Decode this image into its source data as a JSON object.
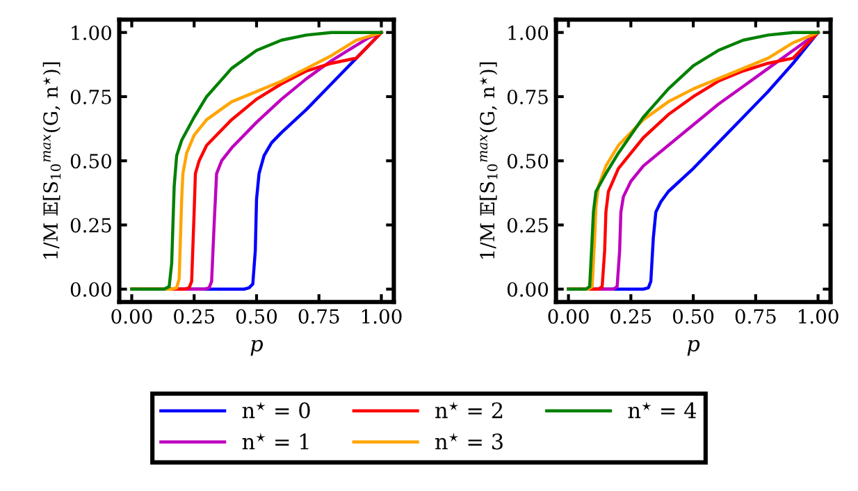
{
  "chart_data": [
    {
      "type": "line",
      "xlabel": "p",
      "ylabel": "1/M 𝔼[S$_{10}$$^{max}$(G, n$^{⋆}$)]",
      "xlim": [
        -0.05,
        1.05
      ],
      "ylim": [
        -0.05,
        1.05
      ],
      "xticks": [
        {
          "value": 0,
          "label": "0.00"
        },
        {
          "value": 0.25,
          "label": "0.25"
        },
        {
          "value": 0.5,
          "label": "0.50"
        },
        {
          "value": 0.75,
          "label": "0.75"
        },
        {
          "value": 1,
          "label": "1.00"
        }
      ],
      "yticks": [
        {
          "value": 0,
          "label": "0.00"
        },
        {
          "value": 0.25,
          "label": "0.25"
        },
        {
          "value": 0.5,
          "label": "0.50"
        },
        {
          "value": 0.75,
          "label": "0.75"
        },
        {
          "value": 1,
          "label": "1.00"
        }
      ],
      "grid": false,
      "legend": "bottom",
      "marker": "none",
      "line_style": "solid",
      "series": [
        {
          "name": "n$^{⋆}$ = 0",
          "color": "#0000ff",
          "x": [
            0,
            0.45,
            0.47,
            0.485,
            0.495,
            0.5,
            0.51,
            0.53,
            0.56,
            0.6,
            0.7,
            0.8,
            0.9,
            1
          ],
          "values": [
            0,
            0,
            0.005,
            0.02,
            0.15,
            0.35,
            0.45,
            0.52,
            0.57,
            0.61,
            0.7,
            0.8,
            0.9,
            1
          ]
        },
        {
          "name": "n$^{⋆}$ = 1",
          "color": "#bf00bf",
          "x": [
            0,
            0.29,
            0.31,
            0.32,
            0.33,
            0.34,
            0.36,
            0.4,
            0.5,
            0.6,
            0.7,
            0.8,
            0.9,
            0.95,
            1
          ],
          "values": [
            0,
            0,
            0.005,
            0.03,
            0.25,
            0.45,
            0.5,
            0.55,
            0.65,
            0.74,
            0.82,
            0.89,
            0.95,
            0.98,
            1
          ]
        },
        {
          "name": "n$^{⋆}$ = 2",
          "color": "#ff0000",
          "x": [
            0,
            0.21,
            0.23,
            0.24,
            0.25,
            0.255,
            0.27,
            0.3,
            0.4,
            0.5,
            0.6,
            0.7,
            0.8,
            0.9,
            0.95,
            1
          ],
          "values": [
            0,
            0,
            0.005,
            0.03,
            0.3,
            0.45,
            0.5,
            0.56,
            0.66,
            0.74,
            0.8,
            0.85,
            0.88,
            0.9,
            0.95,
            1
          ]
        },
        {
          "name": "n$^{⋆}$ = 3",
          "color": "#ffa500",
          "x": [
            0,
            0.16,
            0.18,
            0.19,
            0.2,
            0.205,
            0.22,
            0.25,
            0.3,
            0.4,
            0.5,
            0.6,
            0.7,
            0.8,
            0.9,
            1
          ],
          "values": [
            0,
            0,
            0.005,
            0.04,
            0.35,
            0.45,
            0.53,
            0.6,
            0.66,
            0.73,
            0.77,
            0.81,
            0.86,
            0.91,
            0.97,
            1
          ]
        },
        {
          "name": "n$^{⋆}$ = 4",
          "color": "#008000",
          "x": [
            0,
            0.13,
            0.15,
            0.16,
            0.17,
            0.18,
            0.2,
            0.25,
            0.3,
            0.4,
            0.5,
            0.6,
            0.7,
            0.8,
            1
          ],
          "values": [
            0,
            0,
            0.01,
            0.1,
            0.4,
            0.52,
            0.58,
            0.67,
            0.75,
            0.86,
            0.93,
            0.97,
            0.99,
            1,
            1
          ]
        }
      ]
    },
    {
      "type": "line",
      "xlabel": "p",
      "ylabel": "1/M 𝔼[S$_{10}$$^{max}$(G, n$^{⋆}$)]",
      "xlim": [
        -0.05,
        1.05
      ],
      "ylim": [
        -0.05,
        1.05
      ],
      "xticks": [
        {
          "value": 0,
          "label": "0.00"
        },
        {
          "value": 0.25,
          "label": "0.25"
        },
        {
          "value": 0.5,
          "label": "0.50"
        },
        {
          "value": 0.75,
          "label": "0.75"
        },
        {
          "value": 1,
          "label": "1.00"
        }
      ],
      "yticks": [
        {
          "value": 0,
          "label": "0.00"
        },
        {
          "value": 0.25,
          "label": "0.25"
        },
        {
          "value": 0.5,
          "label": "0.50"
        },
        {
          "value": 0.75,
          "label": "0.75"
        },
        {
          "value": 1,
          "label": "1.00"
        }
      ],
      "grid": false,
      "legend": "bottom",
      "marker": "none",
      "line_style": "solid",
      "series": [
        {
          "name": "n$^{⋆}$ = 0",
          "color": "#0000ff",
          "x": [
            0,
            0.3,
            0.32,
            0.33,
            0.34,
            0.35,
            0.37,
            0.4,
            0.5,
            0.6,
            0.7,
            0.8,
            0.9,
            1
          ],
          "values": [
            0,
            0,
            0.005,
            0.03,
            0.2,
            0.3,
            0.34,
            0.38,
            0.47,
            0.57,
            0.67,
            0.77,
            0.88,
            1
          ]
        },
        {
          "name": "n$^{⋆}$ = 1",
          "color": "#bf00bf",
          "x": [
            0,
            0.18,
            0.195,
            0.205,
            0.21,
            0.22,
            0.25,
            0.3,
            0.4,
            0.5,
            0.6,
            0.7,
            0.8,
            0.9,
            1
          ],
          "values": [
            0,
            0,
            0.01,
            0.15,
            0.3,
            0.36,
            0.42,
            0.48,
            0.56,
            0.64,
            0.72,
            0.79,
            0.86,
            0.93,
            1
          ]
        },
        {
          "name": "n$^{⋆}$ = 2",
          "color": "#ff0000",
          "x": [
            0,
            0.12,
            0.135,
            0.145,
            0.15,
            0.16,
            0.2,
            0.3,
            0.4,
            0.5,
            0.6,
            0.7,
            0.8,
            0.9,
            0.95,
            1
          ],
          "values": [
            0,
            0,
            0.01,
            0.15,
            0.3,
            0.38,
            0.47,
            0.59,
            0.68,
            0.75,
            0.81,
            0.85,
            0.88,
            0.9,
            0.95,
            1
          ]
        },
        {
          "name": "n$^{⋆}$ = 3",
          "color": "#ffa500",
          "x": [
            0,
            0.08,
            0.095,
            0.105,
            0.11,
            0.12,
            0.15,
            0.2,
            0.3,
            0.4,
            0.5,
            0.6,
            0.7,
            0.8,
            0.9,
            1
          ],
          "values": [
            0,
            0,
            0.01,
            0.2,
            0.32,
            0.4,
            0.48,
            0.56,
            0.66,
            0.73,
            0.78,
            0.82,
            0.86,
            0.9,
            0.96,
            1
          ]
        },
        {
          "name": "n$^{⋆}$ = 4",
          "color": "#008000",
          "x": [
            0,
            0.07,
            0.085,
            0.095,
            0.1,
            0.11,
            0.15,
            0.2,
            0.3,
            0.4,
            0.5,
            0.6,
            0.7,
            0.8,
            0.9,
            1
          ],
          "values": [
            0,
            0,
            0.01,
            0.2,
            0.3,
            0.38,
            0.45,
            0.53,
            0.67,
            0.78,
            0.87,
            0.93,
            0.97,
            0.99,
            1,
            1
          ]
        }
      ]
    }
  ]
}
